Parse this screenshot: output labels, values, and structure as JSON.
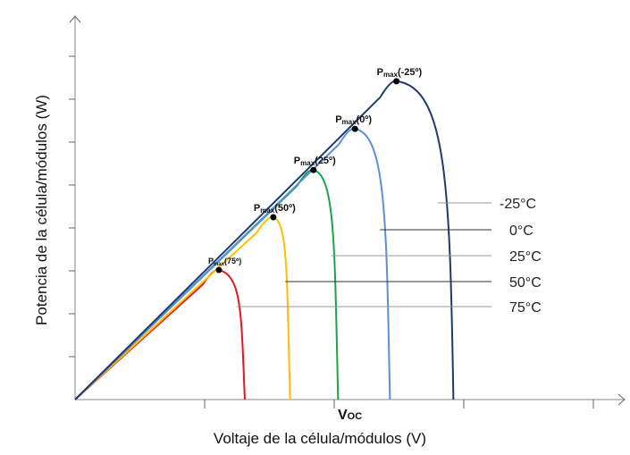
{
  "chart_data": {
    "type": "line",
    "title": "",
    "xlabel": "Voltaje de la célula/módulos (V)",
    "ylabel": "Potencia de la célula/módulos (W)",
    "x_annotation": {
      "main": "V",
      "sub": "OC"
    },
    "xlim": [
      0,
      4.2
    ],
    "ylim": [
      0,
      8.9
    ],
    "grid": false,
    "series": [
      {
        "name": "-25°C",
        "color": "#1f3a6e",
        "peak_label": "max",
        "peak_suffix": "(-25º)",
        "pmax": [
          2.48,
          7.42
        ],
        "voc": 2.92
      },
      {
        "name": "0°C",
        "color": "#5b8fd6",
        "peak_label": "max",
        "peak_suffix": "(0º)",
        "pmax": [
          2.16,
          6.31
        ],
        "voc": 2.43
      },
      {
        "name": "25°C",
        "color": "#1aa34a",
        "peak_label": "max",
        "peak_suffix": "(25º)",
        "pmax": [
          1.84,
          5.35
        ],
        "voc": 2.03
      },
      {
        "name": "50°C",
        "color": "#ffbf00",
        "peak_label": "max",
        "peak_suffix": "(50º)",
        "pmax": [
          1.53,
          4.25
        ],
        "voc": 1.66
      },
      {
        "name": "75°C",
        "color": "#e8141c",
        "peak_label": "max",
        "peak_suffix": "(75º)",
        "pmax": [
          1.11,
          3.02
        ],
        "voc": 1.31
      }
    ],
    "peak_prefix": "P"
  }
}
